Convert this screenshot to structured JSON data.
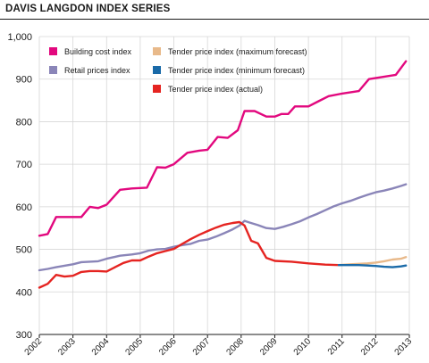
{
  "chart_data": {
    "type": "line",
    "title": "DAVIS LANGDON INDEX SERIES",
    "ylim": [
      300,
      1000
    ],
    "xlim": [
      2002,
      2013
    ],
    "grid": true,
    "legend_position": "top-left",
    "y_ticks": [
      "300",
      "400",
      "500",
      "600",
      "700",
      "800",
      "900",
      "1,000"
    ],
    "x_ticks": [
      "2002",
      "2003",
      "2004",
      "2005",
      "2006",
      "2007",
      "2008",
      "2009",
      "2010",
      "2011",
      "2012",
      "2013"
    ],
    "series": [
      {
        "name": "Building cost index",
        "color": "#e2087e",
        "points": [
          [
            2002.0,
            532
          ],
          [
            2002.25,
            536
          ],
          [
            2002.5,
            576
          ],
          [
            2003.0,
            576
          ],
          [
            2003.25,
            576
          ],
          [
            2003.5,
            600
          ],
          [
            2003.75,
            597
          ],
          [
            2004.0,
            605
          ],
          [
            2004.4,
            640
          ],
          [
            2004.75,
            643
          ],
          [
            2005.2,
            645
          ],
          [
            2005.5,
            693
          ],
          [
            2005.75,
            692
          ],
          [
            2006.0,
            700
          ],
          [
            2006.4,
            727
          ],
          [
            2006.75,
            732
          ],
          [
            2007.0,
            734
          ],
          [
            2007.3,
            764
          ],
          [
            2007.6,
            762
          ],
          [
            2007.9,
            780
          ],
          [
            2008.1,
            825
          ],
          [
            2008.4,
            825
          ],
          [
            2008.75,
            812
          ],
          [
            2009.0,
            812
          ],
          [
            2009.2,
            818
          ],
          [
            2009.4,
            818
          ],
          [
            2009.6,
            836
          ],
          [
            2010.0,
            836
          ],
          [
            2010.3,
            848
          ],
          [
            2010.6,
            860
          ],
          [
            2011.0,
            866
          ],
          [
            2011.5,
            872
          ],
          [
            2011.8,
            900
          ],
          [
            2012.2,
            905
          ],
          [
            2012.6,
            910
          ],
          [
            2012.9,
            942
          ]
        ]
      },
      {
        "name": "Retail prices index",
        "color": "#8a85b8",
        "points": [
          [
            2002.0,
            451
          ],
          [
            2002.25,
            454
          ],
          [
            2002.5,
            458
          ],
          [
            2003.0,
            465
          ],
          [
            2003.25,
            470
          ],
          [
            2003.5,
            471
          ],
          [
            2003.75,
            472
          ],
          [
            2004.0,
            478
          ],
          [
            2004.4,
            485
          ],
          [
            2004.75,
            488
          ],
          [
            2005.0,
            491
          ],
          [
            2005.25,
            497
          ],
          [
            2005.5,
            500
          ],
          [
            2005.75,
            501
          ],
          [
            2006.0,
            506
          ],
          [
            2006.25,
            510
          ],
          [
            2006.5,
            513
          ],
          [
            2006.75,
            520
          ],
          [
            2007.0,
            523
          ],
          [
            2007.25,
            530
          ],
          [
            2007.5,
            538
          ],
          [
            2007.75,
            547
          ],
          [
            2007.95,
            556
          ],
          [
            2008.1,
            567
          ],
          [
            2008.25,
            563
          ],
          [
            2008.5,
            557
          ],
          [
            2008.75,
            550
          ],
          [
            2009.0,
            548
          ],
          [
            2009.25,
            553
          ],
          [
            2009.5,
            559
          ],
          [
            2009.75,
            566
          ],
          [
            2010.0,
            575
          ],
          [
            2010.25,
            583
          ],
          [
            2010.5,
            592
          ],
          [
            2010.75,
            601
          ],
          [
            2011.0,
            608
          ],
          [
            2011.25,
            614
          ],
          [
            2011.5,
            621
          ],
          [
            2011.75,
            628
          ],
          [
            2012.0,
            634
          ],
          [
            2012.25,
            638
          ],
          [
            2012.5,
            643
          ],
          [
            2012.75,
            649
          ],
          [
            2012.9,
            653
          ]
        ]
      },
      {
        "name": "Tender price index (actual)",
        "color": "#e52421",
        "points": [
          [
            2002.0,
            410
          ],
          [
            2002.25,
            419
          ],
          [
            2002.5,
            440
          ],
          [
            2002.75,
            436
          ],
          [
            2003.0,
            438
          ],
          [
            2003.25,
            447
          ],
          [
            2003.5,
            449
          ],
          [
            2003.75,
            449
          ],
          [
            2004.0,
            448
          ],
          [
            2004.25,
            458
          ],
          [
            2004.5,
            468
          ],
          [
            2004.75,
            474
          ],
          [
            2005.0,
            474
          ],
          [
            2005.25,
            483
          ],
          [
            2005.5,
            491
          ],
          [
            2005.75,
            496
          ],
          [
            2006.0,
            501
          ],
          [
            2006.25,
            513
          ],
          [
            2006.5,
            524
          ],
          [
            2006.75,
            534
          ],
          [
            2007.0,
            543
          ],
          [
            2007.25,
            551
          ],
          [
            2007.5,
            558
          ],
          [
            2007.75,
            562
          ],
          [
            2007.95,
            564
          ],
          [
            2008.1,
            556
          ],
          [
            2008.3,
            520
          ],
          [
            2008.5,
            514
          ],
          [
            2008.75,
            480
          ],
          [
            2009.0,
            473
          ],
          [
            2009.5,
            471
          ],
          [
            2010.0,
            467
          ],
          [
            2010.5,
            464
          ],
          [
            2010.9,
            463
          ]
        ]
      },
      {
        "name": "Tender price index (maximum forecast)",
        "color": "#e8b98a",
        "points": [
          [
            2010.9,
            463
          ],
          [
            2011.25,
            465
          ],
          [
            2011.5,
            466
          ],
          [
            2011.75,
            467
          ],
          [
            2012.0,
            469
          ],
          [
            2012.25,
            472
          ],
          [
            2012.5,
            476
          ],
          [
            2012.75,
            478
          ],
          [
            2012.9,
            482
          ]
        ]
      },
      {
        "name": "Tender price index (minimum forecast)",
        "color": "#1a6aa8",
        "points": [
          [
            2010.9,
            463
          ],
          [
            2011.25,
            463
          ],
          [
            2011.5,
            463
          ],
          [
            2011.75,
            462
          ],
          [
            2012.0,
            461
          ],
          [
            2012.25,
            459
          ],
          [
            2012.5,
            458
          ],
          [
            2012.75,
            460
          ],
          [
            2012.9,
            462
          ]
        ]
      }
    ],
    "legend": [
      {
        "label": "Building cost index",
        "color": "#e2087e"
      },
      {
        "label": "Retail prices index",
        "color": "#8a85b8"
      },
      {
        "label": "Tender price index (maximum forecast)",
        "color": "#e8b98a"
      },
      {
        "label": "Tender price index (minimum forecast)",
        "color": "#1a6aa8"
      },
      {
        "label": "Tender price index (actual)",
        "color": "#e52421"
      }
    ]
  }
}
